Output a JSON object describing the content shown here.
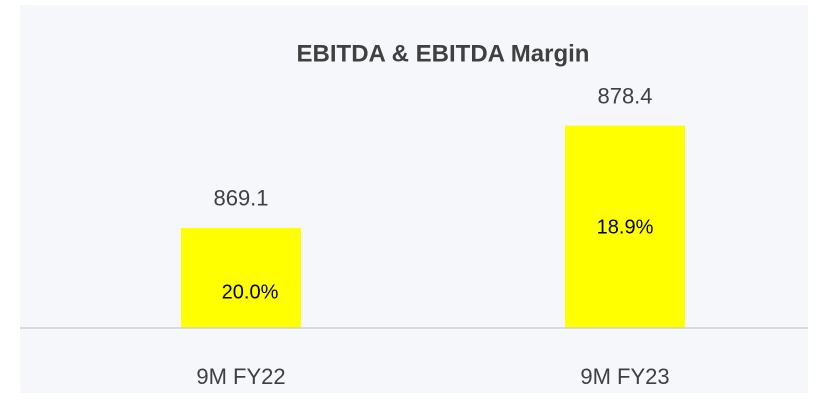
{
  "chart_data": {
    "type": "bar",
    "title": "EBITDA & EBITDA Margin",
    "categories": [
      "9M FY22",
      "9M FY23"
    ],
    "values": [
      869.1,
      878.4
    ],
    "color": "#ffff00",
    "ylim": [
      860,
      880
    ],
    "margin": {
      "values": [
        20.0,
        18.9
      ],
      "value_labels": [
        "20.0%",
        "18.9%"
      ]
    }
  }
}
